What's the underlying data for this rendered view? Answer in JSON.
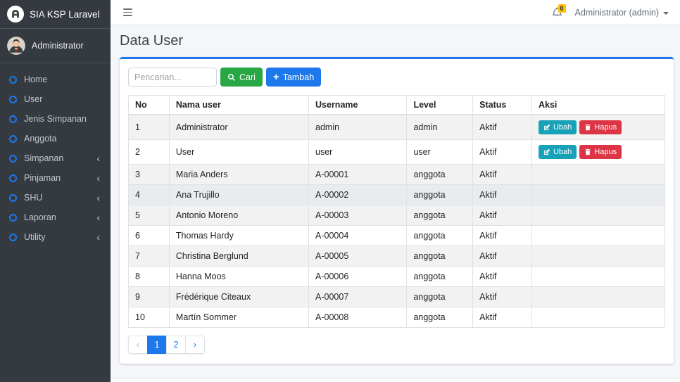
{
  "brand": {
    "title": "SIA KSP Laravel"
  },
  "user_panel": {
    "name": "Administrator"
  },
  "sidebar": {
    "items": [
      {
        "label": "Home",
        "has_children": false
      },
      {
        "label": "User",
        "has_children": false
      },
      {
        "label": "Jenis Simpanan",
        "has_children": false
      },
      {
        "label": "Anggota",
        "has_children": false
      },
      {
        "label": "Simpanan",
        "has_children": true
      },
      {
        "label": "Pinjaman",
        "has_children": true
      },
      {
        "label": "SHU",
        "has_children": true
      },
      {
        "label": "Laporan",
        "has_children": true
      },
      {
        "label": "Utility",
        "has_children": true
      }
    ]
  },
  "navbar": {
    "notification_count": "0",
    "user_menu": "Administrator (admin)"
  },
  "page": {
    "title": "Data User"
  },
  "toolbar": {
    "search_placeholder": "Pencarian...",
    "search_value": "",
    "cari_label": "Cari",
    "tambah_label": "Tambah"
  },
  "table": {
    "headers": [
      "No",
      "Nama user",
      "Username",
      "Level",
      "Status",
      "Aksi"
    ],
    "rows": [
      {
        "no": "1",
        "nama": "Administrator",
        "username": "admin",
        "level": "admin",
        "status": "Aktif",
        "has_actions": true,
        "hover": false
      },
      {
        "no": "2",
        "nama": "User",
        "username": "user",
        "level": "user",
        "status": "Aktif",
        "has_actions": true,
        "hover": false
      },
      {
        "no": "3",
        "nama": "Maria Anders",
        "username": "A-00001",
        "level": "anggota",
        "status": "Aktif",
        "has_actions": false,
        "hover": false
      },
      {
        "no": "4",
        "nama": "Ana Trujillo",
        "username": "A-00002",
        "level": "anggota",
        "status": "Aktif",
        "has_actions": false,
        "hover": true
      },
      {
        "no": "5",
        "nama": "Antonio Moreno",
        "username": "A-00003",
        "level": "anggota",
        "status": "Aktif",
        "has_actions": false,
        "hover": false
      },
      {
        "no": "6",
        "nama": "Thomas Hardy",
        "username": "A-00004",
        "level": "anggota",
        "status": "Aktif",
        "has_actions": false,
        "hover": false
      },
      {
        "no": "7",
        "nama": "Christina Berglund",
        "username": "A-00005",
        "level": "anggota",
        "status": "Aktif",
        "has_actions": false,
        "hover": false
      },
      {
        "no": "8",
        "nama": "Hanna Moos",
        "username": "A-00006",
        "level": "anggota",
        "status": "Aktif",
        "has_actions": false,
        "hover": false
      },
      {
        "no": "9",
        "nama": "Frédérique Citeaux",
        "username": "A-00007",
        "level": "anggota",
        "status": "Aktif",
        "has_actions": false,
        "hover": false
      },
      {
        "no": "10",
        "nama": "Martín Sommer",
        "username": "A-00008",
        "level": "anggota",
        "status": "Aktif",
        "has_actions": false,
        "hover": false
      }
    ]
  },
  "actions": {
    "ubah_label": "Ubah",
    "hapus_label": "Hapus"
  },
  "pagination": {
    "prev_label": "‹",
    "pages": [
      "1",
      "2"
    ],
    "next_label": "›",
    "active_page": "1"
  },
  "icons": {
    "app_logo": "letter-a-circle",
    "menu_toggle": "hamburger",
    "notifications": "bell",
    "user_caret": "caret-down",
    "sidebar_bullet": "circle-outline",
    "submenu_collapsed": "chevron-left",
    "search": "magnifier",
    "add": "plus",
    "edit": "pencil-square",
    "delete": "trash"
  },
  "colors": {
    "primary": "#1d78ec",
    "success": "#28a745",
    "info": "#17a2b8",
    "danger": "#dc3545",
    "warning": "#ffc107",
    "sidebar_bg": "#343a40",
    "page_bg": "#f4f6f9"
  }
}
